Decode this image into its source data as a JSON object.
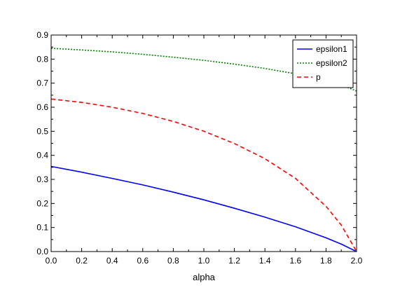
{
  "chart_data": {
    "type": "line",
    "xlabel": "alpha",
    "ylabel": "",
    "xlim": [
      0.0,
      2.0
    ],
    "ylim": [
      0.0,
      0.9
    ],
    "xticks": [
      "0.0",
      "0.2",
      "0.4",
      "0.6",
      "0.8",
      "1.0",
      "1.2",
      "1.4",
      "1.6",
      "1.8",
      "2.0"
    ],
    "yticks": [
      "0.0",
      "0.1",
      "0.2",
      "0.3",
      "0.4",
      "0.5",
      "0.6",
      "0.7",
      "0.8",
      "0.9"
    ],
    "grid": false,
    "legend_position": "top-right",
    "x": [
      0.0,
      0.2,
      0.4,
      0.6,
      0.8,
      1.0,
      1.2,
      1.4,
      1.6,
      1.8,
      1.9,
      2.0
    ],
    "series": [
      {
        "name": "epsilon1",
        "color": "#0000ff",
        "style": "solid",
        "values": [
          0.354,
          0.33,
          0.304,
          0.277,
          0.247,
          0.215,
          0.18,
          0.143,
          0.103,
          0.057,
          0.031,
          0.0
        ]
      },
      {
        "name": "epsilon2",
        "color": "#008000",
        "style": "dotted",
        "values": [
          0.845,
          0.838,
          0.83,
          0.82,
          0.808,
          0.795,
          0.779,
          0.761,
          0.739,
          0.713,
          0.693,
          0.667
        ]
      },
      {
        "name": "p",
        "color": "#ff0000",
        "style": "dashed",
        "values": [
          0.634,
          0.62,
          0.6,
          0.574,
          0.541,
          0.5,
          0.449,
          0.386,
          0.304,
          0.188,
          0.11,
          0.0
        ]
      }
    ]
  }
}
